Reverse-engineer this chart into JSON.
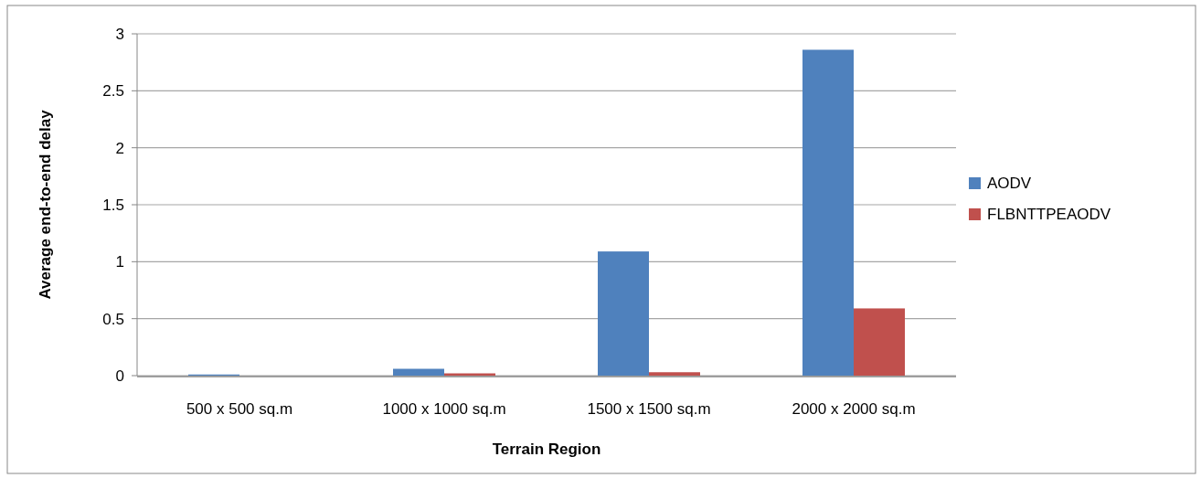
{
  "chart_data": {
    "type": "bar",
    "xlabel": "Terrain Region",
    "ylabel": "Average end-to-end delay",
    "categories": [
      "500 x 500 sq.m",
      "1000 x 1000 sq.m",
      "1500 x 1500 sq.m",
      "2000 x 2000 sq.m"
    ],
    "series": [
      {
        "name": "AODV",
        "color": "#4f81bd",
        "values": [
          0.01,
          0.06,
          1.09,
          2.86
        ]
      },
      {
        "name": "FLBNTTPEAODV",
        "color": "#c0504d",
        "values": [
          0,
          0.02,
          0.03,
          0.59
        ]
      }
    ],
    "ylim": [
      0,
      3
    ],
    "yticks": [
      0,
      0.5,
      1,
      1.5,
      2,
      2.5,
      3
    ],
    "grid": "y",
    "legend": "right"
  }
}
